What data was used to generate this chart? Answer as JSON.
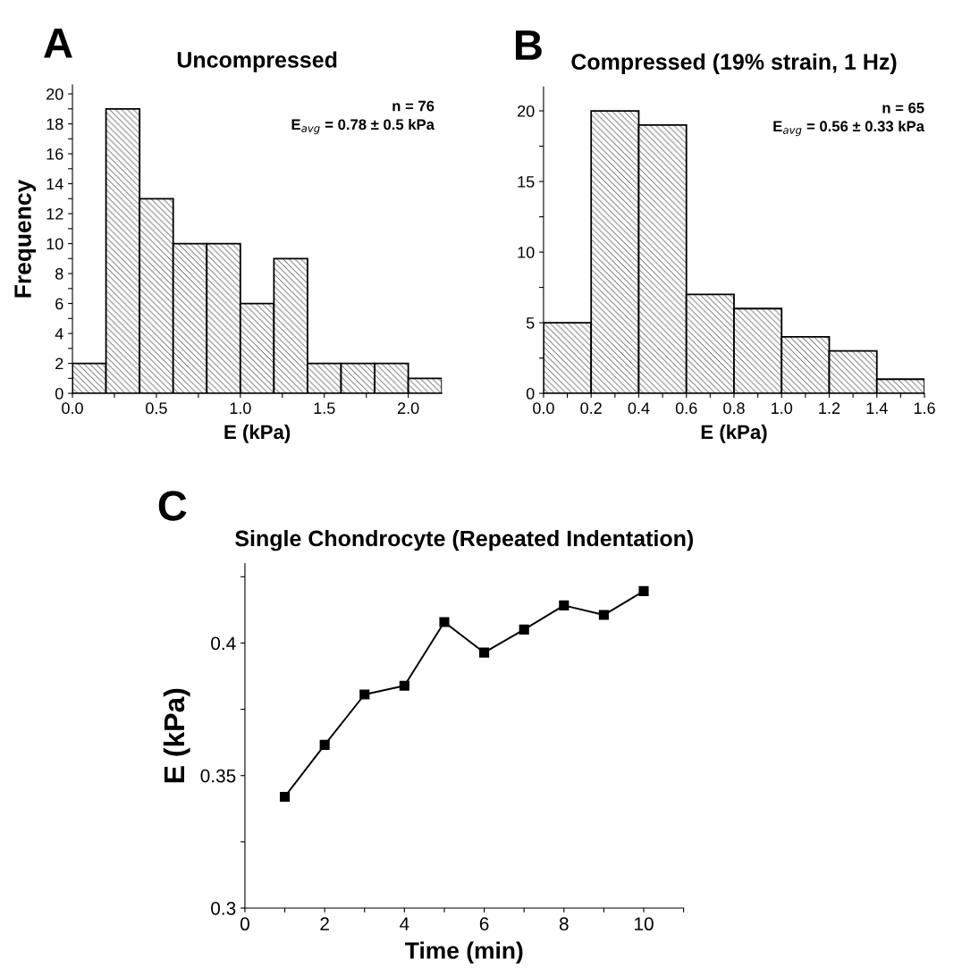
{
  "chart_data": [
    {
      "type": "histogram",
      "title": "Uncompressed",
      "xlabel": "E (kPa)",
      "ylabel": "Frequency",
      "bins": [
        0.0,
        0.2,
        0.4,
        0.6,
        0.8,
        1.0,
        1.2,
        1.4,
        1.6,
        1.8,
        2.0,
        2.2
      ],
      "values": [
        2,
        19,
        13,
        10,
        10,
        6,
        9,
        2,
        2,
        2,
        1
      ],
      "xlim": [
        0,
        2.2
      ],
      "ylim": [
        0,
        20.6
      ],
      "xticks": [
        {
          "value": 0,
          "label": "0.0"
        },
        {
          "value": 0.25,
          "label": null
        },
        {
          "value": 0.5,
          "label": "0.5"
        },
        {
          "value": 0.75,
          "label": null
        },
        {
          "value": 1.0,
          "label": "1.0"
        },
        {
          "value": 1.25,
          "label": null
        },
        {
          "value": 1.5,
          "label": "1.5"
        },
        {
          "value": 1.75,
          "label": null
        },
        {
          "value": 2.0,
          "label": "2.0"
        }
      ],
      "yticks": [
        0,
        {
          "value": 1,
          "label": null
        },
        2,
        {
          "value": 3,
          "label": null
        },
        4,
        {
          "value": 5,
          "label": null
        },
        6,
        {
          "value": 7,
          "label": null
        },
        8,
        {
          "value": 9,
          "label": null
        },
        10,
        {
          "value": 11,
          "label": null
        },
        12,
        {
          "value": 13,
          "label": null
        },
        14,
        {
          "value": 15,
          "label": null
        },
        16,
        {
          "value": 17,
          "label": null
        },
        18,
        {
          "value": 19,
          "label": null
        },
        20
      ],
      "annotations": [
        "A",
        "n = 76",
        "E$_{avg}$ = 0.78 ± 0.5 kPa"
      ]
    },
    {
      "type": "histogram",
      "title": "Compressed (19% strain, 1 Hz)",
      "xlabel": "E (kPa)",
      "bins": [
        0.0,
        0.2,
        0.4,
        0.6,
        0.8,
        1.0,
        1.2,
        1.4,
        1.6
      ],
      "values": [
        5,
        20,
        19,
        7,
        6,
        4,
        3,
        1
      ],
      "xlim": [
        0,
        1.6
      ],
      "ylim": [
        0,
        21.7
      ],
      "xticks": [
        {
          "value": 0,
          "label": "0.0"
        },
        {
          "value": 0.1,
          "label": null
        },
        0.2,
        {
          "value": 0.3,
          "label": null
        },
        0.4,
        {
          "value": 0.5,
          "label": null
        },
        0.6,
        {
          "value": 0.7,
          "label": null
        },
        0.8,
        {
          "value": 0.9,
          "label": null
        },
        {
          "value": 1.0,
          "label": "1.0"
        },
        {
          "value": 1.1,
          "label": null
        },
        1.2,
        {
          "value": 1.3,
          "label": null
        },
        1.4,
        {
          "value": 1.5,
          "label": null
        },
        1.6
      ],
      "yticks": [
        0,
        {
          "value": 2.5,
          "label": null
        },
        5,
        {
          "value": 7.5,
          "label": null
        },
        10,
        {
          "value": 12.5,
          "label": null
        },
        15,
        {
          "value": 17.5,
          "label": null
        },
        20
      ],
      "annotations": [
        "B",
        "n = 65",
        "E$_{avg}$ = 0.56 ± 0.33 kPa"
      ]
    },
    {
      "type": "line",
      "title": "Single Chondrocyte (Repeated Indentation)",
      "xlabel": "Time (min)",
      "ylabel": "E (kPa)",
      "x": [
        1,
        2,
        3,
        4,
        5,
        6,
        7,
        8,
        9,
        10
      ],
      "series": [
        {
          "color": "#000000",
          "values": [
            0.342,
            0.3616,
            0.3806,
            0.3839,
            0.4079,
            0.3964,
            0.4051,
            0.4142,
            0.4106,
            0.4196
          ]
        }
      ],
      "marker": "square",
      "line_style": "solid",
      "xlim": [
        0,
        11
      ],
      "ylim": [
        0.3,
        0.43
      ],
      "xticks": [
        0,
        {
          "value": 1,
          "label": null
        },
        2,
        {
          "value": 3,
          "label": null
        },
        4,
        {
          "value": 5,
          "label": null
        },
        6,
        {
          "value": 7,
          "label": null
        },
        8,
        {
          "value": 9,
          "label": null
        },
        10,
        {
          "value": 11,
          "label": null
        }
      ],
      "yticks": [
        0.3,
        {
          "value": 0.325,
          "label": null
        },
        0.35,
        {
          "value": 0.375,
          "label": null
        },
        0.4,
        {
          "value": 0.425,
          "label": null
        }
      ],
      "annotations": [
        "C"
      ]
    }
  ]
}
